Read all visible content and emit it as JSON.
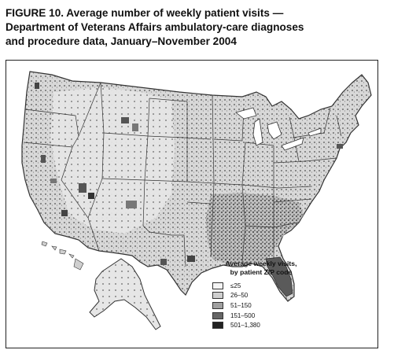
{
  "figure": {
    "title_line1": "FIGURE 10. Average number of weekly patient visits —",
    "title_line2": "Department of Veterans Affairs ambulatory-care diagnoses",
    "title_line3": "and procedure data, January–November 2004"
  },
  "legend": {
    "title_line1": "Average weekly visits,",
    "title_line2": "by patient ZIP code",
    "items": [
      {
        "label": "≤25",
        "color": "#f4f4f4"
      },
      {
        "label": "26–50",
        "color": "#cfcfcf"
      },
      {
        "label": "51–150",
        "color": "#a0a0a0"
      },
      {
        "label": "151–500",
        "color": "#666666"
      },
      {
        "label": "501–1,380",
        "color": "#222222"
      }
    ]
  },
  "colors": {
    "land": "#dcdcdc",
    "border": "#333333",
    "water": "#ffffff"
  }
}
